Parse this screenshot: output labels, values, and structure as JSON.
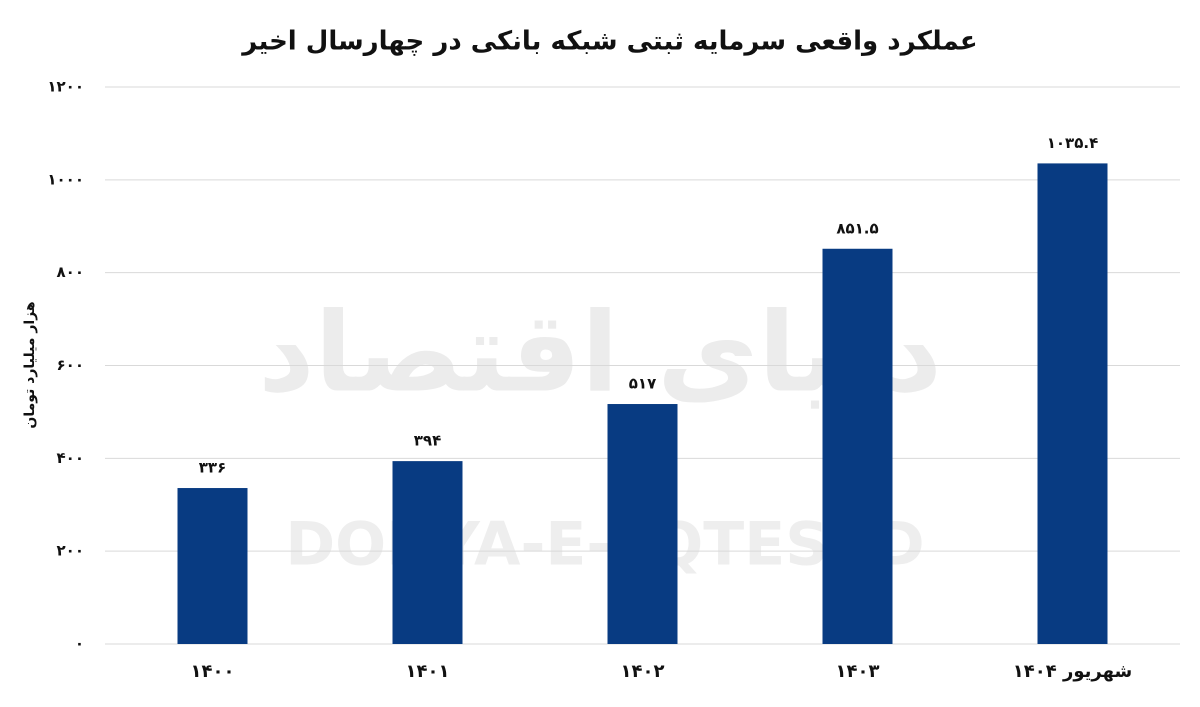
{
  "chart_data": {
    "type": "bar",
    "title": "عملکرد واقعی سرمایه ثبتی شبکه بانکی در چهارسال اخیر",
    "y_label": "هزار میلیارد تومان",
    "watermark": [
      "دنیای اقتصاد",
      "DONYA-E-EQTESAD"
    ],
    "categories": [
      "۱۴۰۰",
      "۱۴۰۱",
      "۱۴۰۲",
      "۱۴۰۳",
      "شهریور ۱۴۰۴"
    ],
    "values": [
      336,
      394,
      517,
      851.5,
      1035.4
    ],
    "value_labels": [
      "۳۳۶",
      "۳۹۴",
      "۵۱۷",
      "۸۵۱.۵",
      "۱۰۳۵.۴"
    ],
    "color": "#083b82",
    "ylim": [
      0,
      1200
    ],
    "yticks": [
      {
        "value": 0,
        "label": "۰"
      },
      {
        "value": 200,
        "label": "۲۰۰"
      },
      {
        "value": 400,
        "label": "۴۰۰"
      },
      {
        "value": 600,
        "label": "۶۰۰"
      },
      {
        "value": 800,
        "label": "۸۰۰"
      },
      {
        "value": 1000,
        "label": "۱۰۰۰"
      },
      {
        "value": 1200,
        "label": "۱۲۰۰"
      }
    ],
    "grid": true
  }
}
